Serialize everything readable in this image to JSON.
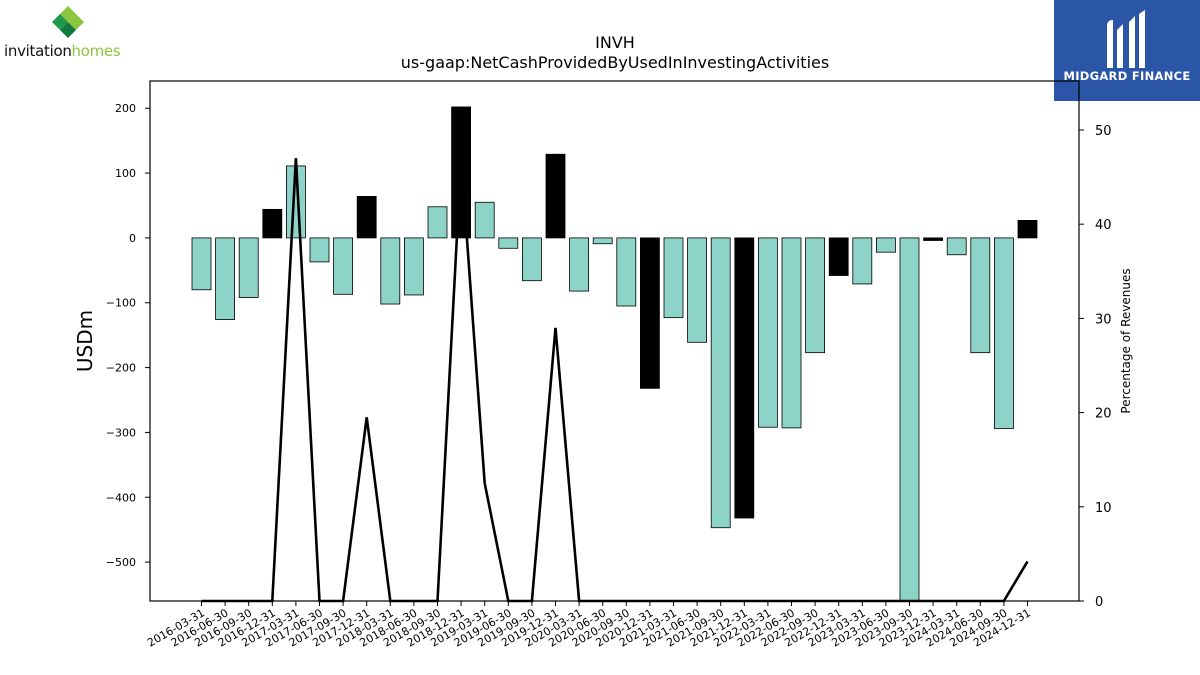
{
  "logos": {
    "left": {
      "word1": "invitation",
      "word2": "homes"
    },
    "right": {
      "brand": "MIDGARD FINANCE"
    }
  },
  "colors": {
    "positive_bar": "#8dd3c7",
    "negative_change_bar": "#000000",
    "line": "#000000"
  },
  "chart_data": {
    "type": "bar",
    "title": "INVH",
    "subtitle": "us-gaap:NetCashProvidedByUsedInInvestingActivities",
    "ylabel": "USDm",
    "y2label": "Percentage of Revenues",
    "ylim": [
      -560,
      242
    ],
    "y2lim": [
      0,
      55.2
    ],
    "yticks": [
      -500,
      -400,
      -300,
      -200,
      -100,
      0,
      100,
      200
    ],
    "y2ticks": [
      0,
      10,
      20,
      30,
      40,
      50
    ],
    "categories": [
      "2016-03-31",
      "2016-06-30",
      "2016-09-30",
      "2016-12-31",
      "2017-03-31",
      "2017-06-30",
      "2017-09-30",
      "2017-12-31",
      "2018-03-31",
      "2018-06-30",
      "2018-09-30",
      "2018-12-31",
      "2019-03-31",
      "2019-06-30",
      "2019-09-30",
      "2019-12-31",
      "2020-03-31",
      "2020-06-30",
      "2020-09-30",
      "2020-12-31",
      "2021-03-31",
      "2021-06-30",
      "2021-09-30",
      "2021-12-31",
      "2022-03-31",
      "2022-06-30",
      "2022-09-30",
      "2022-12-31",
      "2023-03-31",
      "2023-06-30",
      "2023-09-30",
      "2023-12-31",
      "2024-03-31",
      "2024-06-30",
      "2024-09-30",
      "2024-12-31"
    ],
    "series": [
      {
        "kind": "bar",
        "values": [
          -80,
          -126,
          -92,
          44,
          111,
          -37,
          -87,
          64,
          -102,
          -88,
          48,
          202,
          55,
          -16,
          -66,
          129,
          -82,
          -9,
          -105,
          -232,
          -123,
          -161,
          -447,
          -432,
          -292,
          -293,
          -177,
          -58,
          -71,
          -22,
          -560,
          -4,
          -26,
          -177,
          -294,
          27
        ],
        "highlight": [
          false,
          false,
          false,
          true,
          false,
          false,
          false,
          true,
          false,
          false,
          false,
          true,
          false,
          false,
          false,
          true,
          false,
          false,
          false,
          true,
          false,
          false,
          false,
          true,
          false,
          false,
          false,
          true,
          false,
          false,
          false,
          true,
          false,
          false,
          false,
          true
        ]
      },
      {
        "kind": "line",
        "axis": "right",
        "values": [
          0,
          0,
          0,
          0,
          47,
          null,
          null,
          19.5,
          null,
          null,
          null,
          47,
          12.5,
          null,
          null,
          29,
          null,
          null,
          null,
          null,
          null,
          null,
          null,
          null,
          null,
          null,
          null,
          null,
          null,
          null,
          null,
          null,
          null,
          null,
          null,
          4.2
        ]
      }
    ],
    "legend": "none",
    "grid": false
  }
}
